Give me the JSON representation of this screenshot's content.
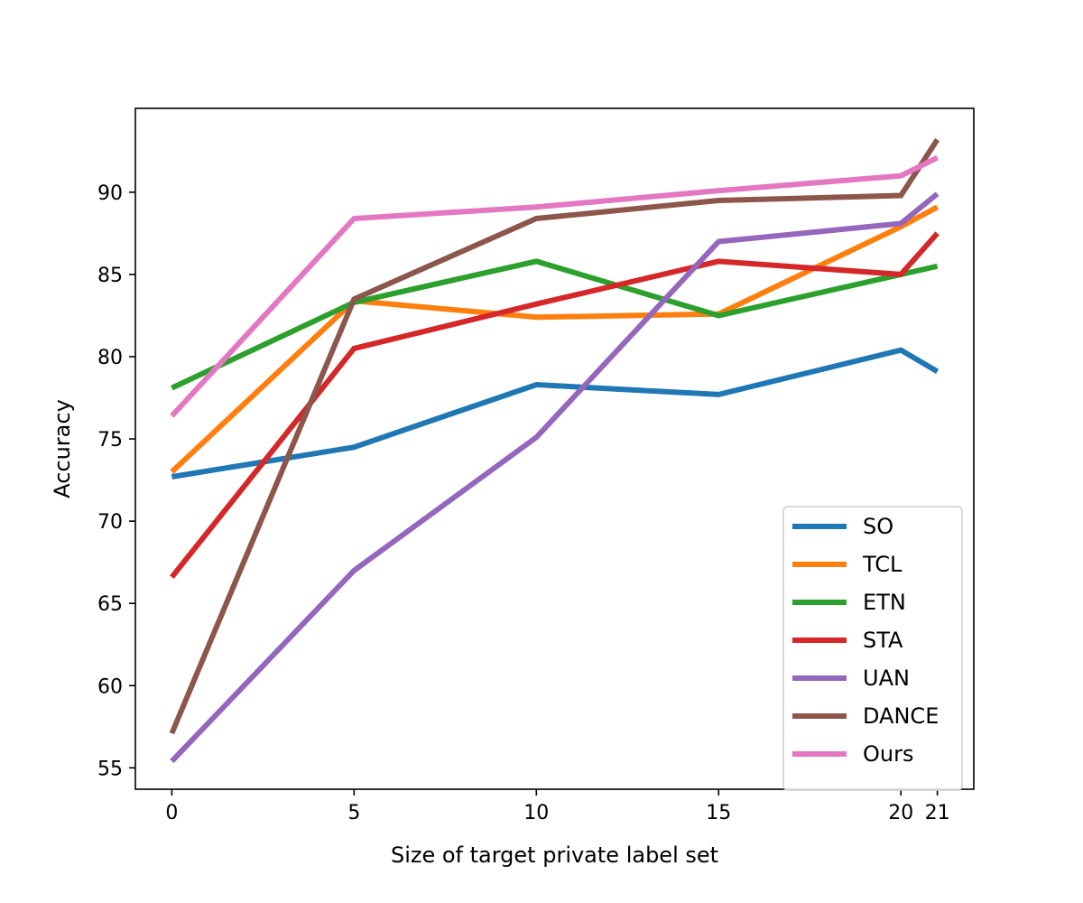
{
  "chart_data": {
    "type": "line",
    "title": "",
    "xlabel": "Size of target private label set",
    "ylabel": "Accuracy",
    "xlim": [
      -1,
      22
    ],
    "ylim": [
      53.7,
      95.1
    ],
    "xticks": [
      0,
      5,
      10,
      15,
      20,
      21
    ],
    "yticks": [
      55,
      60,
      65,
      70,
      75,
      80,
      85,
      90
    ],
    "grid": false,
    "legend_position": "bottom-right",
    "x": [
      0,
      5,
      10,
      15,
      20,
      21
    ],
    "series": [
      {
        "name": "SO",
        "color": "#1f77b4",
        "values": [
          72.7,
          74.5,
          78.3,
          77.7,
          80.4,
          79.1
        ]
      },
      {
        "name": "TCL",
        "color": "#ff7f0e",
        "values": [
          73.0,
          83.4,
          82.4,
          82.6,
          87.9,
          89.1
        ]
      },
      {
        "name": "ETN",
        "color": "#2ca02c",
        "values": [
          78.1,
          83.3,
          85.8,
          82.5,
          85.0,
          85.5
        ]
      },
      {
        "name": "STA",
        "color": "#d62728",
        "values": [
          66.6,
          80.5,
          83.2,
          85.8,
          85.0,
          87.5
        ]
      },
      {
        "name": "UAN",
        "color": "#9467bd",
        "values": [
          55.4,
          67.0,
          75.1,
          87.0,
          88.1,
          89.9
        ]
      },
      {
        "name": "DANCE",
        "color": "#8c564b",
        "values": [
          57.1,
          83.5,
          88.4,
          89.5,
          89.8,
          93.2
        ]
      },
      {
        "name": "Ours",
        "color": "#e377c2",
        "values": [
          76.4,
          88.4,
          89.1,
          90.1,
          91.0,
          92.1
        ]
      }
    ]
  }
}
